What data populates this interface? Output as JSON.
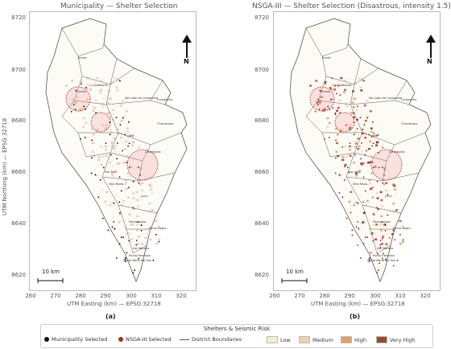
{
  "panels": [
    {
      "title": "Municipality — Shelter Selection",
      "sub_label": "(a)",
      "variant": "municipality"
    },
    {
      "title": "NSGA-III — Shelter Selection (Disastrous, intensity 1.5)",
      "sub_label": "(b)",
      "variant": "nsga"
    }
  ],
  "axes": {
    "ylabel": "UTM Northing (km) — EPSG:32718",
    "xlabel": "UTM Easting (km) — EPSG:32718",
    "yticks": [
      "8720",
      "8700",
      "8680",
      "8660",
      "8640",
      "8620"
    ],
    "xticks": [
      "260",
      "270",
      "280",
      "290",
      "300",
      "310",
      "320"
    ]
  },
  "scale_bar": "10 km",
  "north_label": "N",
  "district_labels": [
    "Ancón",
    "Carabayllo",
    "Comas",
    "San Juan de Lurigancho",
    "Lurigancho",
    "Chaclacayo",
    "Cieneguilla",
    "Ate",
    "Lurín",
    "Pachacámac",
    "Punta Negra",
    "San Bartolo",
    "Santa María del Mar",
    "Punta Hermosa",
    "San Mar..",
    "Villa María..."
  ],
  "legend": {
    "title": "Shelters & Seismic Risk",
    "items": [
      {
        "label": "Municipality Selected",
        "kind": "dot",
        "color": "#111111"
      },
      {
        "label": "NSGA-III Selected",
        "kind": "dot",
        "color": "#a0301e"
      },
      {
        "label": "District Boundaries",
        "kind": "line",
        "color": "#555555"
      },
      {
        "label": "Low",
        "kind": "box",
        "color": "#f7ecd2"
      },
      {
        "label": "Medium",
        "kind": "box",
        "color": "#ead3a8"
      },
      {
        "label": "High",
        "kind": "box",
        "color": "#d9a36b"
      },
      {
        "label": "Very High",
        "kind": "box",
        "color": "#9a4a2e"
      }
    ]
  }
}
